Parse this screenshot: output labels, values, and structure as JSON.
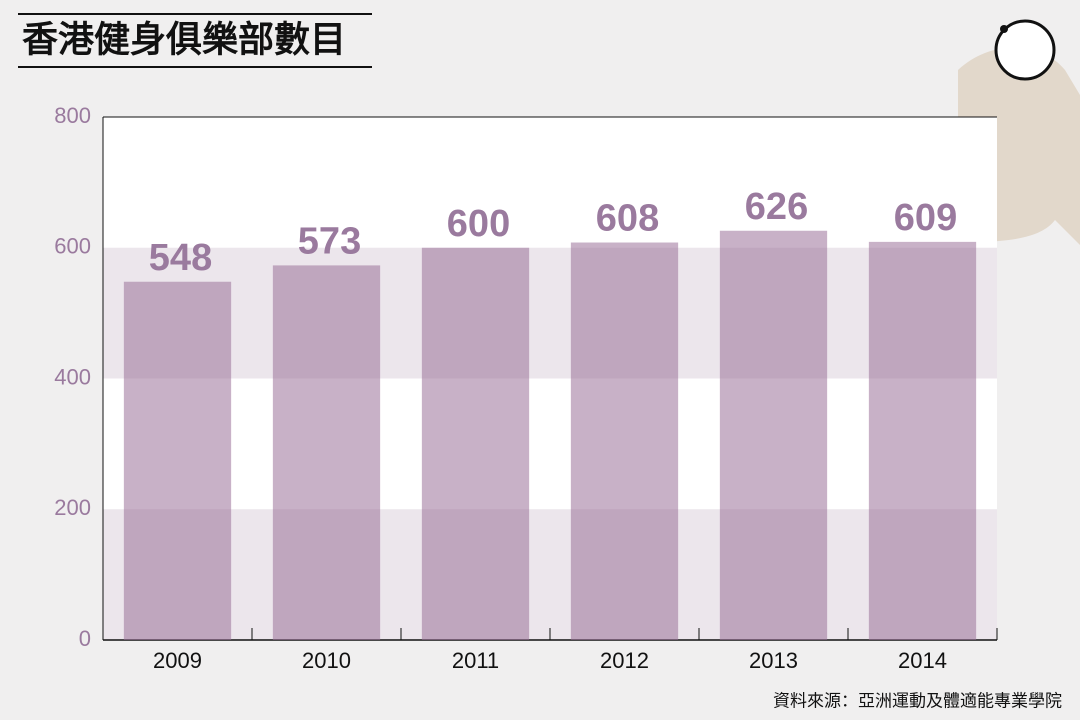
{
  "chart_data": {
    "type": "bar",
    "title": "香港健身俱樂部數目",
    "categories": [
      "2009",
      "2010",
      "2011",
      "2012",
      "2013",
      "2014"
    ],
    "values": [
      548,
      573,
      600,
      608,
      626,
      609
    ],
    "color": "#9a7199",
    "ylim": [
      0,
      800
    ],
    "yticks": [
      0,
      200,
      400,
      600,
      800
    ],
    "grid": true,
    "source": "資料來源：亞洲運動及體適能專業學院"
  }
}
